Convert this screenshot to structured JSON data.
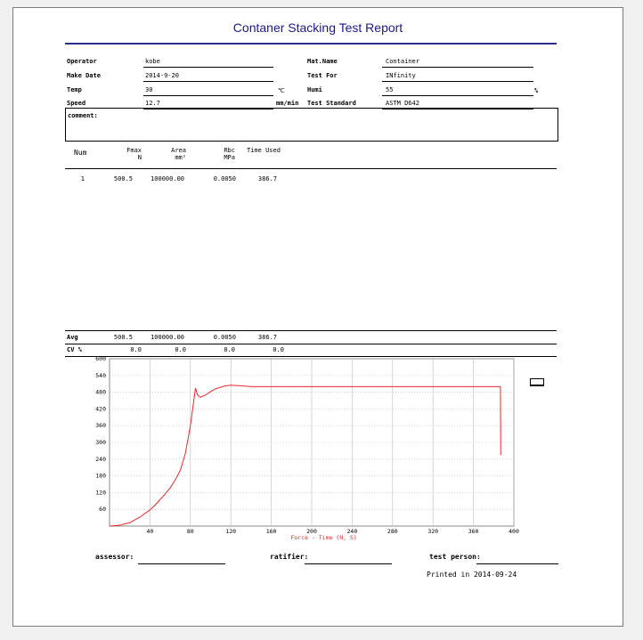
{
  "report": {
    "title": "Contaner Stacking Test Report",
    "operator_label": "Operator",
    "operator": "kobe",
    "make_date_label": "Make Date",
    "make_date": "2014-9-20",
    "temp_label": "Temp",
    "temp": "30",
    "temp_unit": "℃",
    "speed_label": "Speed",
    "speed": "12.7",
    "speed_unit": "mm/min",
    "mat_name_label": "Mat.Name",
    "mat_name": "Container",
    "test_for_label": "Test For",
    "test_for": "INfinity",
    "humi_label": "Humi",
    "humi": "55",
    "humi_unit": "%",
    "test_standard_label": "Test Standard",
    "test_standard": "ASTM D642",
    "comment_label": "comment:"
  },
  "table": {
    "num_header": "Num",
    "fmax_header": "Fmax",
    "fmax_unit": "N",
    "area_header": "Area",
    "area_unit": "mm²",
    "rbc_header": "Rbc",
    "rbc_unit": "MPa",
    "time_header": "Time Used",
    "rows": [
      {
        "num": "1",
        "fmax": "500.5",
        "area": "100000.00",
        "rbc": "0.0050",
        "time": "386.7"
      }
    ],
    "avg": {
      "label": "Avg",
      "fmax": "500.5",
      "area": "100000.00",
      "rbc": "0.0050",
      "time": "386.7"
    },
    "cv": {
      "label": "CV %",
      "fmax": "0.0",
      "area": "0.0",
      "rbc": "0.0",
      "time": "0.0"
    }
  },
  "chart_data": {
    "type": "line",
    "xlabel": "Force - Time   (N, S)",
    "xlim": [
      0,
      400
    ],
    "ylim": [
      0,
      600
    ],
    "x_ticks": [
      40,
      80,
      120,
      160,
      200,
      240,
      280,
      320,
      360,
      400
    ],
    "y_ticks": [
      60,
      120,
      180,
      240,
      300,
      360,
      420,
      480,
      540,
      600
    ],
    "grid": true,
    "series_color": "#e8282a",
    "series": [
      {
        "x": [
          0,
          10,
          15,
          20,
          25,
          30,
          35,
          40,
          45,
          50,
          55,
          60,
          65,
          70,
          75,
          80,
          83,
          85,
          87,
          90,
          95,
          100,
          105,
          110,
          115,
          120,
          130,
          140,
          160,
          200,
          240,
          280,
          320,
          360,
          385,
          386,
          386.7,
          387
        ],
        "y": [
          0,
          3,
          8,
          12,
          22,
          32,
          45,
          58,
          75,
          95,
          115,
          137,
          165,
          200,
          260,
          360,
          440,
          495,
          470,
          462,
          470,
          482,
          492,
          498,
          503,
          505,
          503,
          500,
          500,
          500,
          500,
          500,
          500,
          500,
          500,
          500,
          500,
          255
        ]
      }
    ]
  },
  "footer": {
    "assessor_label": "assessor:",
    "ratifier_label": "ratifier:",
    "test_person_label": "test person:",
    "printed": "Printed in 2014-09-24"
  },
  "colors": {
    "title": "#1a1a8a",
    "rule": "#2b2b8c",
    "curve": "#e8282a",
    "axis_label": "#e8282a"
  }
}
